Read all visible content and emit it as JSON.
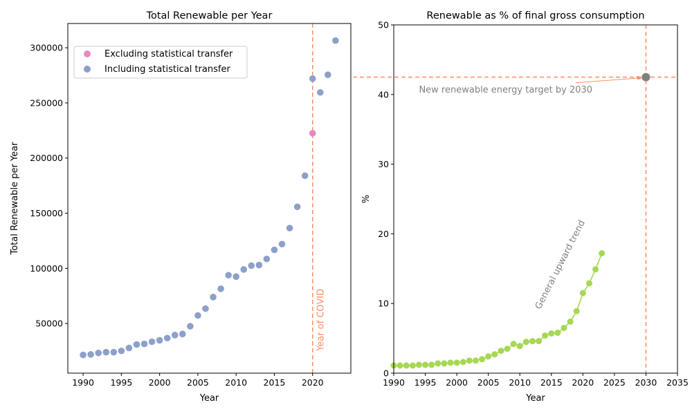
{
  "chart_data": [
    {
      "type": "scatter",
      "title": "Total Renewable per Year",
      "xlabel": "Year",
      "ylabel": "Total Renewable per Year",
      "xlim": [
        1988,
        2025
      ],
      "ylim": [
        5000,
        322000
      ],
      "xticks": [
        1990,
        1995,
        2000,
        2005,
        2010,
        2015,
        2020
      ],
      "yticks": [
        50000,
        100000,
        150000,
        200000,
        250000,
        300000
      ],
      "grid": false,
      "legend": "upper-left",
      "colors": {
        "including": "#8da0cb",
        "excluding": "#e78ac3",
        "covid_line": "#fc8d62"
      },
      "series": [
        {
          "name": "Excluding statistical transfer",
          "points": [
            [
              2020,
              222500
            ]
          ]
        },
        {
          "name": "Including statistical transfer",
          "points": [
            [
              1990,
              21500
            ],
            [
              1991,
              22000
            ],
            [
              1992,
              23300
            ],
            [
              1993,
              24000
            ],
            [
              1994,
              24000
            ],
            [
              1995,
              25200
            ],
            [
              1996,
              27800
            ],
            [
              1997,
              31000
            ],
            [
              1998,
              31500
            ],
            [
              1999,
              33500
            ],
            [
              2000,
              34800
            ],
            [
              2001,
              36800
            ],
            [
              2002,
              39500
            ],
            [
              2003,
              40500
            ],
            [
              2004,
              47500
            ],
            [
              2005,
              57300
            ],
            [
              2006,
              63500
            ],
            [
              2007,
              74000
            ],
            [
              2008,
              81500
            ],
            [
              2009,
              93800
            ],
            [
              2010,
              92500
            ],
            [
              2011,
              99000
            ],
            [
              2012,
              102500
            ],
            [
              2013,
              103000
            ],
            [
              2014,
              108500
            ],
            [
              2015,
              116800
            ],
            [
              2016,
              122000
            ],
            [
              2017,
              136500
            ],
            [
              2018,
              155800
            ],
            [
              2019,
              184000
            ],
            [
              2020,
              272000
            ],
            [
              2021,
              259500
            ],
            [
              2022,
              275500
            ],
            [
              2023,
              306500
            ]
          ]
        }
      ],
      "annotations": [
        {
          "x": 2020,
          "text": "Year of COVID"
        }
      ]
    },
    {
      "type": "line",
      "title": "Renewable as % of final gross consumption",
      "xlabel": "Year",
      "ylabel": "%",
      "xlim": [
        1990,
        2035
      ],
      "ylim": [
        0,
        50
      ],
      "xticks": [
        1990,
        1995,
        2000,
        2005,
        2010,
        2015,
        2020,
        2025,
        2030,
        2035
      ],
      "yticks": [
        0,
        10,
        20,
        30,
        40,
        50
      ],
      "grid": false,
      "colors": {
        "line": "#a6d854",
        "target": "#fc8d62",
        "target_point": "#7f7f7f",
        "annotation": "#808080"
      },
      "series": [
        {
          "x": [
            1990,
            1991,
            1992,
            1993,
            1994,
            1995,
            1996,
            1997,
            1998,
            1999,
            2000,
            2001,
            2002,
            2003,
            2004,
            2005,
            2006,
            2007,
            2008,
            2009,
            2010,
            2011,
            2012,
            2013,
            2014,
            2015,
            2016,
            2017,
            2018,
            2019,
            2020,
            2021,
            2022,
            2023
          ],
          "values": [
            1.1,
            1.1,
            1.1,
            1.1,
            1.2,
            1.2,
            1.2,
            1.4,
            1.4,
            1.5,
            1.5,
            1.6,
            1.8,
            1.8,
            2.0,
            2.4,
            2.7,
            3.2,
            3.5,
            4.2,
            3.9,
            4.5,
            4.6,
            4.6,
            5.4,
            5.7,
            5.8,
            6.5,
            7.4,
            8.9,
            11.5,
            12.9,
            14.9,
            17.2
          ]
        }
      ],
      "target": {
        "x": 2030,
        "y": 42.5
      },
      "annotations": [
        {
          "text": "New renewable energy target by 2030",
          "x": 1994,
          "y": 40.3
        },
        {
          "text": "General upward trend",
          "x": 2017,
          "y": 15
        }
      ]
    }
  ]
}
